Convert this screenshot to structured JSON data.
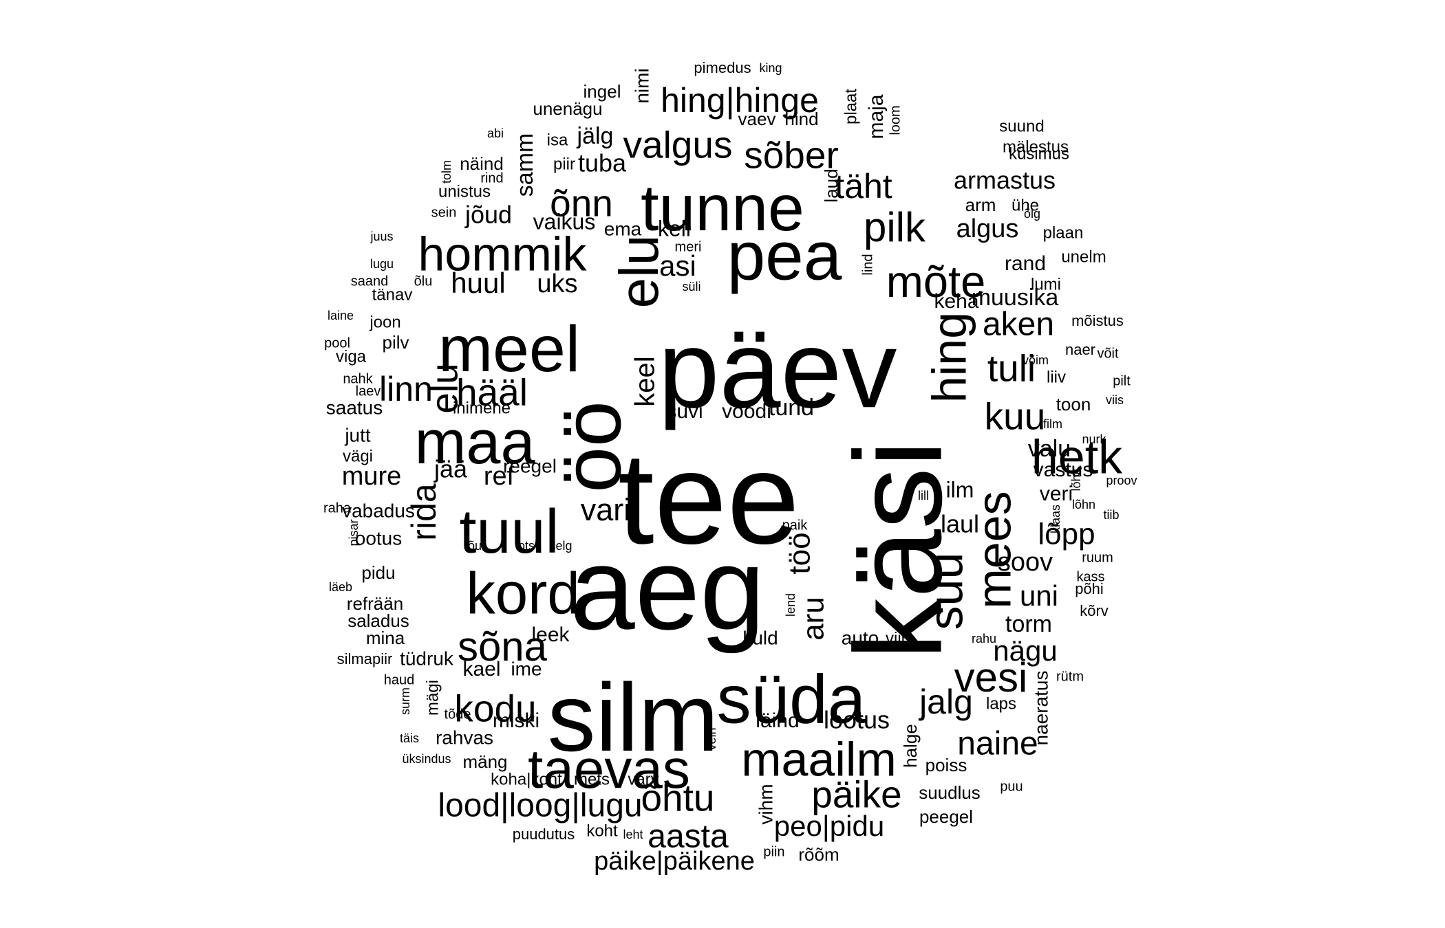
{
  "word_cloud": {
    "text_color": "#000000",
    "background_color": "#ffffff",
    "words": [
      "tee",
      "aeg",
      "käsi",
      "päev",
      "öö",
      "silm",
      "süda",
      "pea",
      "tunne",
      "meel",
      "maa",
      "elu",
      "tuul",
      "kord",
      "taevas",
      "maailm",
      "hommik",
      "hetk",
      "hing",
      "mees",
      "suu",
      "sõna",
      "vesi",
      "valgus",
      "hing|hinge",
      "õnn",
      "täht",
      "pilk",
      "mõte",
      "sõber",
      "kuu",
      "tuli",
      "kodu",
      "õhtu",
      "päike",
      "lood|loog|lugu",
      "aasta",
      "hääl",
      "linn",
      "jalg",
      "naine",
      "peo|pidu",
      "päike|päikene",
      "vari",
      "armastus",
      "algus",
      "aken",
      "muusika",
      "huul",
      "uks",
      "asi",
      "elu",
      "nägu",
      "lõpp",
      "soov",
      "uni",
      "torm",
      "rida",
      "mure",
      "ref",
      "jää",
      "jõud",
      "samm",
      "vaikus",
      "tuba",
      "jälg",
      "kell",
      "ema",
      "lootus",
      "läind",
      "miski",
      "kael",
      "ime",
      "leek",
      "aru",
      "töö",
      "laul",
      "ilm",
      "valu",
      "vastus",
      "veri",
      "keel",
      "suvi",
      "voodi",
      "tund",
      "keha",
      "rand",
      "unelm",
      "lumi",
      "plaan",
      "arm",
      "ühe",
      "küsimus",
      "mälestus",
      "suund",
      "maja",
      "hind",
      "vaev",
      "laud",
      "plaat",
      "pimedus",
      "king",
      "nimi",
      "ingel",
      "unenägu",
      "isa",
      "piir",
      "unistus",
      "näind",
      "sein",
      "rind",
      "tolm",
      "abi",
      "juus",
      "lugu",
      "saand",
      "õlu",
      "tänav",
      "laine",
      "joon",
      "pool",
      "pilv",
      "viga",
      "nahk",
      "laev",
      "saatus",
      "inimene",
      "reegel",
      "jutt",
      "vägi",
      "raha",
      "vabadus",
      "pisar",
      "ootus",
      "õu",
      "ots",
      "selg",
      "pidu",
      "läeb",
      "refrään",
      "saladus",
      "mina",
      "silmapiir",
      "tüdruk",
      "haud",
      "surm",
      "mägi",
      "tõde",
      "rahvas",
      "täis",
      "üksindus",
      "mäng",
      "koha|koht",
      "mets",
      "värv",
      "koht",
      "leht",
      "puudutus",
      "piin",
      "rõõm",
      "vein",
      "vihm",
      "halge",
      "poiss",
      "suudlus",
      "peegel",
      "puu",
      "kuld",
      "auto",
      "viin",
      "lend",
      "paik",
      "rahu",
      "naeratus",
      "rütm",
      "laps",
      "põhi",
      "kõrv",
      "kass",
      "ruum",
      "tiib",
      "lõhn",
      "lõhk",
      "klaas",
      "lill",
      "proov",
      "nurk",
      "film",
      "toon",
      "viis",
      "pilt",
      "liiv",
      "naer",
      "võit",
      "võim",
      "mõistus",
      "lind",
      "meri",
      "süli",
      "loom",
      "õlg"
    ]
  }
}
